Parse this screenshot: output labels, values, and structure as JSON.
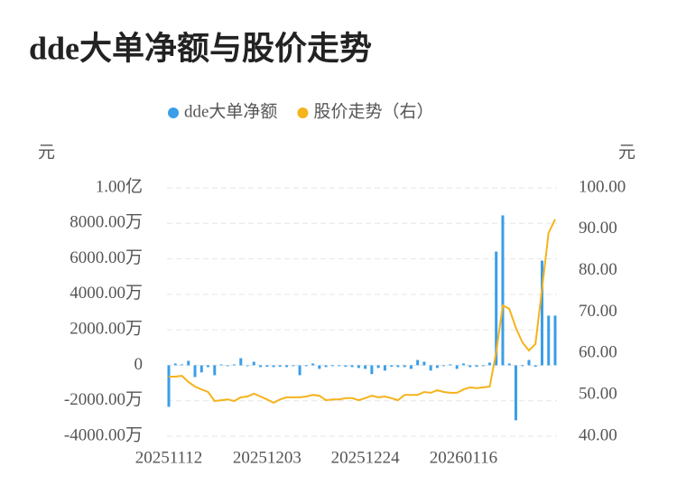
{
  "chart_data": {
    "type": "bar-line",
    "title": "dde大单净额与股价走势",
    "ylabel": "元",
    "y2label": "元",
    "categories": [
      "20251112",
      null,
      null,
      null,
      null,
      null,
      null,
      null,
      null,
      null,
      null,
      null,
      null,
      null,
      null,
      "20251203",
      null,
      null,
      null,
      null,
      null,
      null,
      null,
      null,
      null,
      null,
      null,
      null,
      null,
      null,
      "20251224",
      null,
      null,
      null,
      null,
      null,
      null,
      null,
      null,
      null,
      null,
      null,
      null,
      null,
      null,
      "20260116",
      null,
      null,
      null,
      null,
      null,
      null,
      null,
      null,
      null,
      null,
      null,
      null,
      null,
      null
    ],
    "series": [
      {
        "name": "dde大单净额",
        "type": "bar",
        "color": "#3a9ee8",
        "values": [
          -2340,
          100,
          50,
          250,
          -660,
          -400,
          -100,
          -560,
          50,
          -50,
          50,
          400,
          -50,
          200,
          -100,
          -80,
          -100,
          -80,
          -100,
          -50,
          -560,
          -50,
          100,
          -200,
          -100,
          -50,
          -50,
          -80,
          -100,
          -150,
          -200,
          -500,
          -150,
          -300,
          -80,
          -100,
          -100,
          -200,
          300,
          200,
          -300,
          -150,
          -50,
          50,
          -200,
          100,
          -100,
          -80,
          -50,
          150,
          6410,
          8450,
          100,
          -3100,
          -50,
          300,
          -80,
          5900,
          2800,
          2800
        ]
      },
      {
        "name": "股价走势（右）",
        "type": "line",
        "axis": "y2",
        "color": "#f5b31c",
        "values": [
          54.4,
          54.4,
          54.6,
          53.1,
          52.0,
          51.3,
          50.7,
          48.5,
          48.7,
          48.9,
          48.5,
          49.4,
          49.6,
          50.3,
          49.6,
          48.9,
          48.1,
          48.9,
          49.4,
          49.4,
          49.4,
          49.6,
          50.0,
          49.8,
          48.7,
          48.9,
          48.9,
          49.2,
          49.2,
          48.7,
          49.2,
          49.8,
          49.4,
          49.6,
          49.2,
          48.7,
          50.0,
          50.0,
          50.0,
          50.7,
          50.5,
          51.1,
          50.7,
          50.5,
          50.5,
          51.3,
          51.8,
          51.6,
          51.8,
          52.0,
          60.3,
          71.6,
          70.8,
          66.2,
          62.7,
          60.7,
          62.3,
          75.6,
          89.1,
          92.4
        ]
      }
    ],
    "ylim": [
      -4000,
      10000
    ],
    "yticks": [
      {
        "value": -4000,
        "label": "-4000.00万"
      },
      {
        "value": -2000,
        "label": "-2000.00万"
      },
      0,
      {
        "value": 2000,
        "label": "2000.00万"
      },
      {
        "value": 4000,
        "label": "4000.00万"
      },
      {
        "value": 6000,
        "label": "6000.00万"
      },
      {
        "value": 8000,
        "label": "8000.00万"
      },
      {
        "value": 10000,
        "label": "1.00亿"
      }
    ],
    "y2lim": [
      40,
      100
    ],
    "y2ticks": [
      {
        "value": 40,
        "label": "40.00"
      },
      {
        "value": 50,
        "label": "50.00"
      },
      {
        "value": 60,
        "label": "60.00"
      },
      {
        "value": 70,
        "label": "70.00"
      },
      {
        "value": 80,
        "label": "80.00"
      },
      {
        "value": 90,
        "label": "90.00"
      },
      {
        "value": 100,
        "label": "100.00"
      }
    ],
    "grid": true
  }
}
